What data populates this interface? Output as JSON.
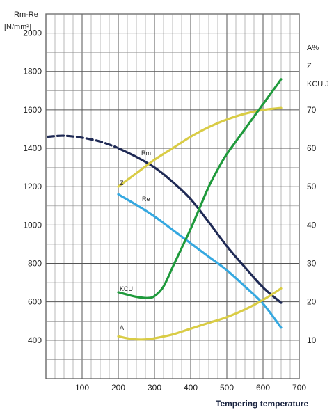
{
  "chart_data": {
    "type": "line",
    "title": "",
    "xlabel": "Tempering temperature",
    "ylabel_left": [
      "Rm-Re",
      "[N/mm²]"
    ],
    "ylabel_right": [
      "A%",
      "Z",
      "KCU J"
    ],
    "xlim": [
      0,
      700
    ],
    "ylim_left": [
      200,
      2100
    ],
    "ylim_right": [
      0,
      95
    ],
    "x_ticks": [
      100,
      200,
      300,
      400,
      500,
      600,
      700
    ],
    "y_left_ticks": [
      400,
      600,
      800,
      1000,
      1200,
      1400,
      1600,
      1800,
      2000
    ],
    "y_right_ticks": [
      10,
      20,
      30,
      40,
      50,
      60,
      70
    ],
    "grid": true,
    "series": [
      {
        "name": "Rm",
        "axis": "left",
        "color": "#1f2a55",
        "dashed_part": [
          [
            5,
            1460
          ],
          [
            50,
            1465
          ],
          [
            100,
            1455
          ],
          [
            150,
            1435
          ],
          [
            195,
            1405
          ]
        ],
        "points": [
          [
            200,
            1400
          ],
          [
            250,
            1355
          ],
          [
            300,
            1300
          ],
          [
            350,
            1225
          ],
          [
            400,
            1135
          ],
          [
            450,
            1015
          ],
          [
            500,
            890
          ],
          [
            550,
            780
          ],
          [
            600,
            675
          ],
          [
            650,
            595
          ]
        ]
      },
      {
        "name": "Re",
        "axis": "left",
        "color": "#35a8e0",
        "points": [
          [
            200,
            1160
          ],
          [
            250,
            1105
          ],
          [
            300,
            1045
          ],
          [
            350,
            975
          ],
          [
            400,
            905
          ],
          [
            450,
            835
          ],
          [
            500,
            765
          ],
          [
            550,
            680
          ],
          [
            600,
            590
          ],
          [
            650,
            465
          ]
        ]
      },
      {
        "name": "Z",
        "axis": "right",
        "color": "#d9cc45",
        "points": [
          [
            200,
            50
          ],
          [
            250,
            53.5
          ],
          [
            300,
            57
          ],
          [
            350,
            60
          ],
          [
            400,
            63
          ],
          [
            450,
            65.5
          ],
          [
            500,
            67.5
          ],
          [
            550,
            69
          ],
          [
            600,
            70
          ],
          [
            650,
            70.5
          ]
        ]
      },
      {
        "name": "KCU",
        "axis": "right",
        "color": "#1f9a3c",
        "points": [
          [
            200,
            22.5
          ],
          [
            220,
            22
          ],
          [
            250,
            21.3
          ],
          [
            280,
            21
          ],
          [
            300,
            21.5
          ],
          [
            325,
            24
          ],
          [
            350,
            29
          ],
          [
            375,
            34
          ],
          [
            400,
            39
          ],
          [
            425,
            44.5
          ],
          [
            450,
            50
          ],
          [
            475,
            54.5
          ],
          [
            500,
            58.5
          ],
          [
            550,
            65
          ],
          [
            600,
            71.5
          ],
          [
            650,
            78
          ]
        ]
      },
      {
        "name": "A",
        "axis": "right",
        "color": "#d9cc45",
        "points": [
          [
            200,
            11
          ],
          [
            225,
            10.5
          ],
          [
            250,
            10.2
          ],
          [
            275,
            10.2
          ],
          [
            300,
            10.5
          ],
          [
            350,
            11.5
          ],
          [
            400,
            13
          ],
          [
            450,
            14.5
          ],
          [
            500,
            16
          ],
          [
            550,
            18
          ],
          [
            600,
            20.5
          ],
          [
            650,
            23.5
          ]
        ]
      }
    ]
  }
}
